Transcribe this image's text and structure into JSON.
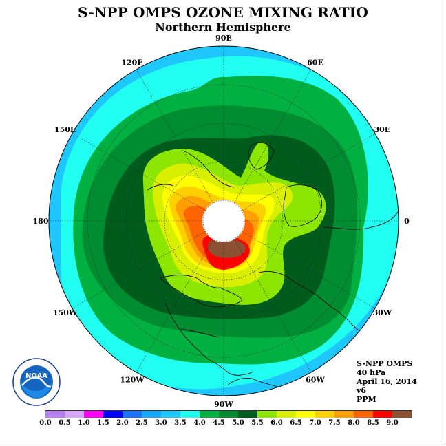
{
  "title": "S-NPP OMPS OZONE MIXING RATIO",
  "subtitle": "Northern Hemisphere",
  "longitude_labels": [
    "90E",
    "60E",
    "30E",
    "0",
    "30W",
    "60W",
    "90W",
    "120W",
    "150W",
    "180",
    "150E",
    "120E"
  ],
  "info": {
    "instrument": "S-NPP OMPS",
    "pressure": "40 hPa",
    "date": "April 16, 2014",
    "version": "v6",
    "units": "PPM"
  },
  "logo_text": "NOAA",
  "colorbar": {
    "ticks": [
      "0.0",
      "0.5",
      "1.0",
      "1.5",
      "2.0",
      "2.5",
      "3.0",
      "3.5",
      "4.0",
      "4.5",
      "5.0",
      "5.5",
      "6.0",
      "6.5",
      "7.0",
      "7.5",
      "8.0",
      "8.5",
      "9.0"
    ],
    "colors": [
      "#b480f0",
      "#d8a8f8",
      "#ff00ff",
      "#0000ff",
      "#1c70ff",
      "#18a8ff",
      "#1ec8ff",
      "#20fff0",
      "#00b040",
      "#008c30",
      "#005c1c",
      "#8ce600",
      "#d8f000",
      "#ffff00",
      "#ffd000",
      "#ffa000",
      "#ff6400",
      "#ff0000",
      "#8c5032"
    ]
  }
}
